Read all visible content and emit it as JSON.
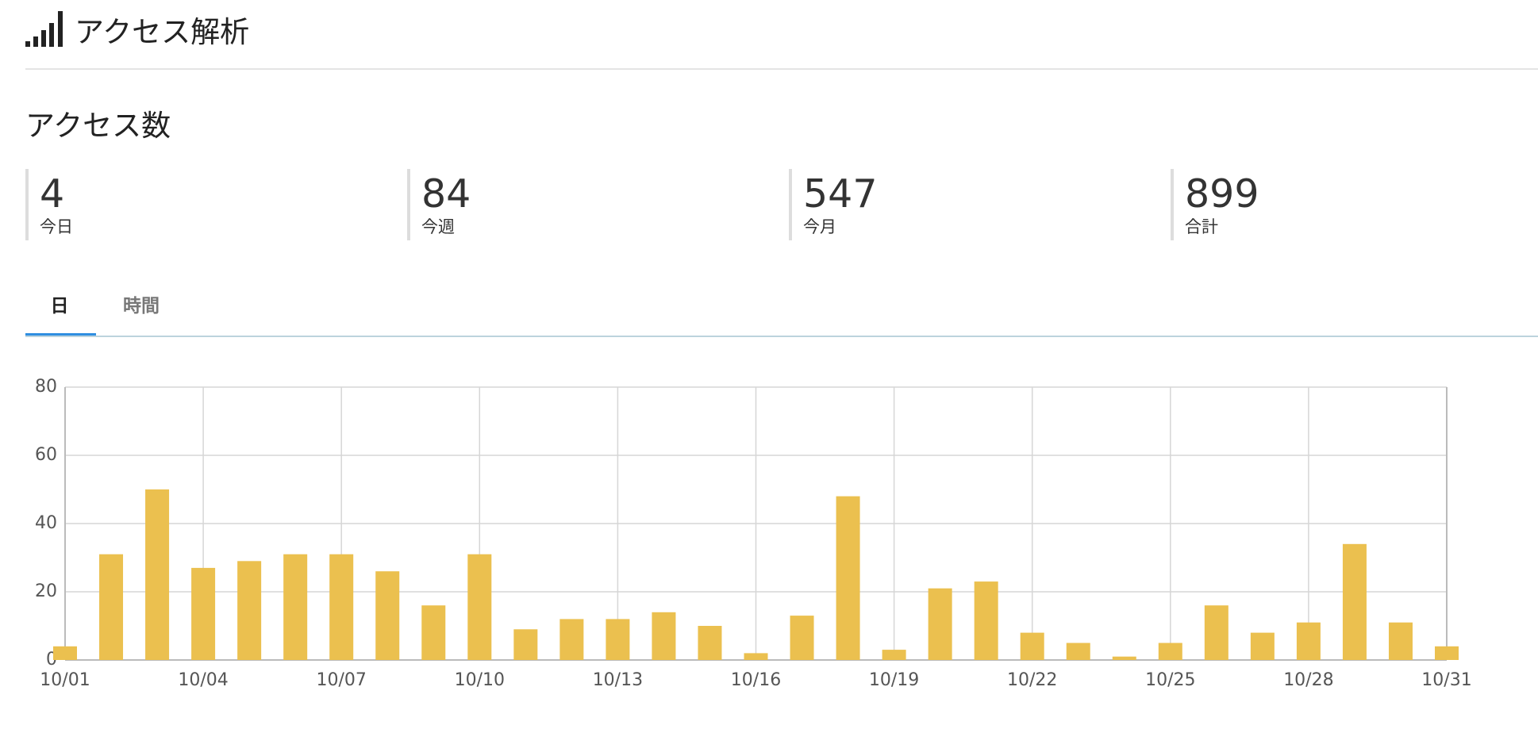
{
  "header": {
    "title": "アクセス解析"
  },
  "section_title": "アクセス数",
  "stats": [
    {
      "value": 4,
      "label": "今日"
    },
    {
      "value": 84,
      "label": "今週"
    },
    {
      "value": 547,
      "label": "今月"
    },
    {
      "value": 899,
      "label": "合計"
    }
  ],
  "tabs": [
    {
      "label": "日",
      "active": true
    },
    {
      "label": "時間",
      "active": false
    }
  ],
  "chart_data": {
    "type": "bar",
    "categories": [
      "10/01",
      null,
      null,
      "10/04",
      null,
      null,
      "10/07",
      null,
      null,
      "10/10",
      null,
      null,
      "10/13",
      null,
      null,
      "10/16",
      null,
      null,
      "10/19",
      null,
      null,
      "10/22",
      null,
      null,
      "10/25",
      null,
      null,
      "10/28",
      null,
      null,
      "10/31"
    ],
    "values": [
      4,
      31,
      50,
      27,
      29,
      31,
      31,
      26,
      16,
      31,
      9,
      12,
      12,
      14,
      10,
      2,
      13,
      48,
      3,
      21,
      23,
      8,
      5,
      1,
      5,
      16,
      8,
      11,
      34,
      11,
      4
    ],
    "color": "#ebc04f",
    "ylim": [
      0,
      80
    ],
    "yticks": [
      0,
      20,
      40,
      60,
      80
    ],
    "grid": true
  }
}
